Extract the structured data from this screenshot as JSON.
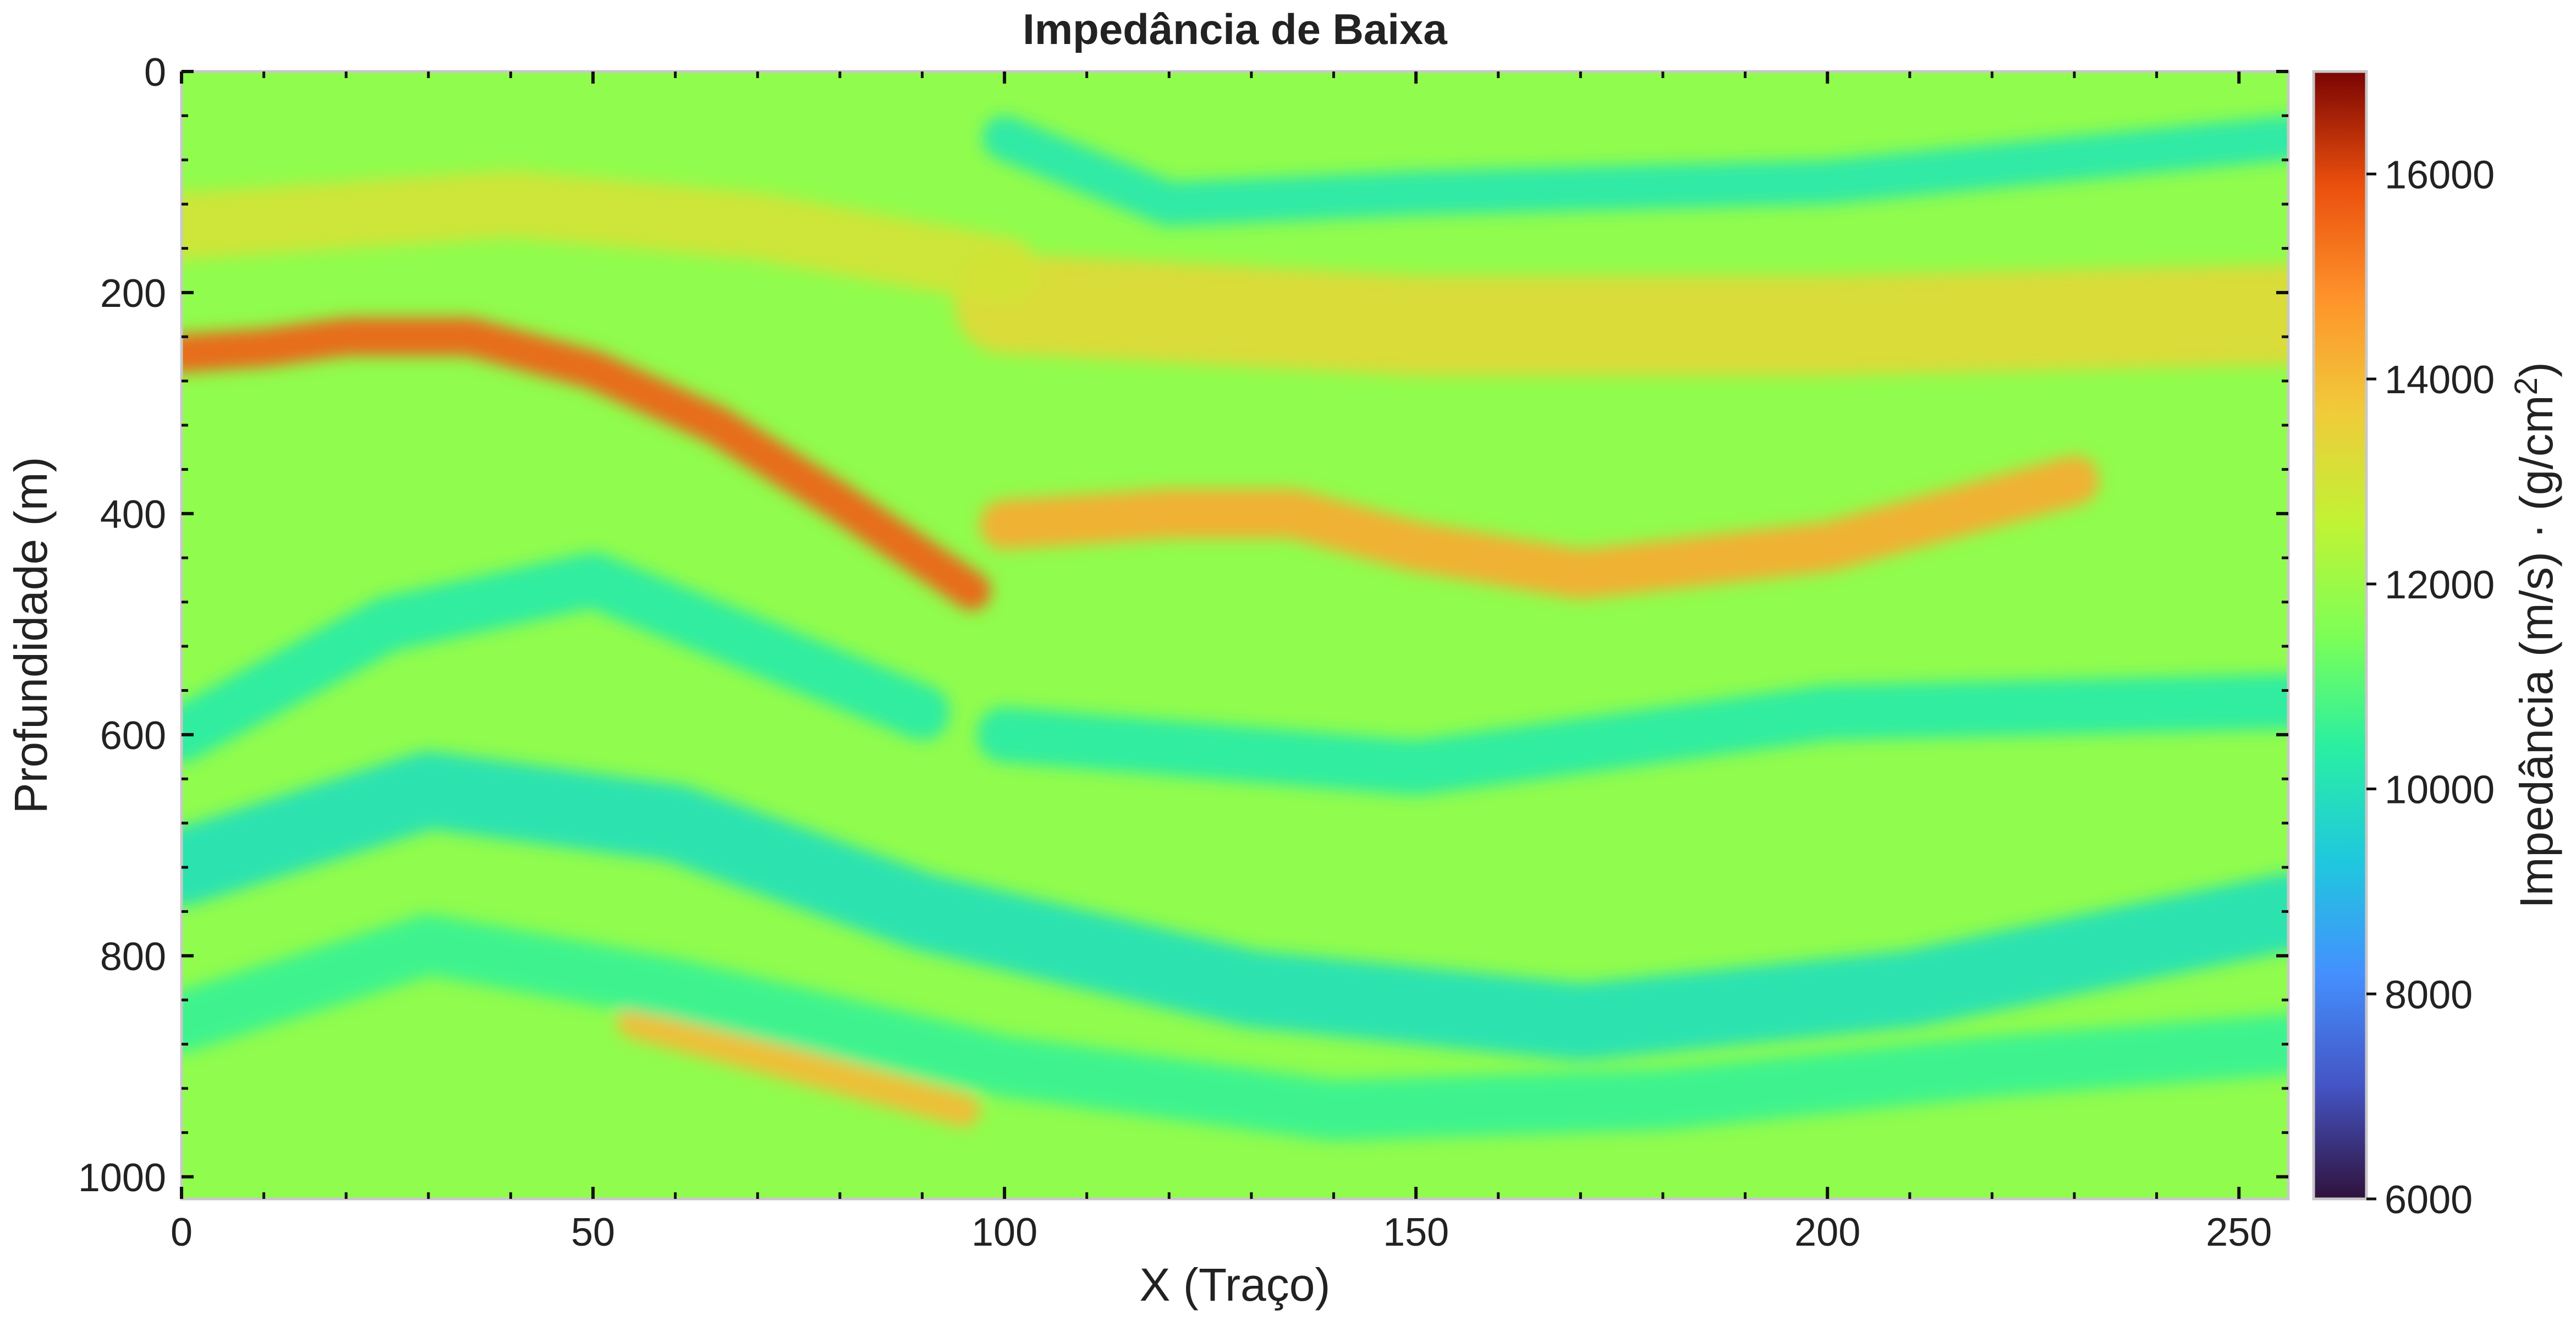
{
  "chart_data": {
    "type": "heatmap",
    "title": "Impedância de Baixa",
    "xlabel": "X (Traço)",
    "ylabel": "Profundidade (m)",
    "xlim": [
      0,
      256
    ],
    "ylim": [
      1020,
      0
    ],
    "x_ticks": [
      0,
      50,
      100,
      150,
      200,
      250
    ],
    "y_ticks": [
      0,
      200,
      400,
      600,
      800,
      1000
    ],
    "colormap": "turbo",
    "colorbar": {
      "label": "Impedância (m/s) · (g/cm²)",
      "range": [
        6000,
        17000
      ],
      "ticks": [
        6000,
        8000,
        10000,
        12000,
        14000,
        16000
      ]
    },
    "background_value": 11800,
    "features": [
      {
        "kind": "horizon",
        "points": [
          [
            0,
            255
          ],
          [
            10,
            250
          ],
          [
            20,
            240
          ],
          [
            35,
            240
          ],
          [
            50,
            270
          ],
          [
            65,
            320
          ],
          [
            80,
            390
          ],
          [
            96,
            470
          ]
        ],
        "value": 15600,
        "thickness_m": 35
      },
      {
        "kind": "horizon",
        "points": [
          [
            100,
            410
          ],
          [
            120,
            400
          ],
          [
            135,
            400
          ],
          [
            150,
            430
          ],
          [
            170,
            455
          ],
          [
            200,
            430
          ],
          [
            230,
            370
          ]
        ],
        "value": 14300,
        "thickness_m": 45
      },
      {
        "kind": "horizon",
        "points": [
          [
            100,
            210
          ],
          [
            150,
            230
          ],
          [
            200,
            230
          ],
          [
            256,
            220
          ]
        ],
        "value": 13300,
        "thickness_m": 90
      },
      {
        "kind": "horizon",
        "points": [
          [
            0,
            140
          ],
          [
            40,
            120
          ],
          [
            70,
            140
          ],
          [
            100,
            180
          ]
        ],
        "value": 13000,
        "thickness_m": 60
      },
      {
        "kind": "horizon",
        "points": [
          [
            55,
            860
          ],
          [
            75,
            900
          ],
          [
            95,
            940
          ]
        ],
        "value": 14000,
        "thickness_m": 30
      },
      {
        "kind": "horizon",
        "points": [
          [
            100,
            60
          ],
          [
            120,
            120
          ],
          [
            150,
            110
          ],
          [
            200,
            100
          ],
          [
            256,
            60
          ]
        ],
        "value": 10200,
        "thickness_m": 40
      },
      {
        "kind": "horizon",
        "points": [
          [
            0,
            600
          ],
          [
            25,
            500
          ],
          [
            50,
            460
          ],
          [
            70,
            520
          ],
          [
            90,
            580
          ]
        ],
        "value": 10300,
        "thickness_m": 50
      },
      {
        "kind": "horizon",
        "points": [
          [
            0,
            720
          ],
          [
            30,
            650
          ],
          [
            60,
            680
          ],
          [
            90,
            760
          ],
          [
            130,
            830
          ],
          [
            170,
            860
          ],
          [
            210,
            830
          ],
          [
            256,
            760
          ]
        ],
        "value": 10000,
        "thickness_m": 70
      },
      {
        "kind": "horizon",
        "points": [
          [
            100,
            600
          ],
          [
            150,
            630
          ],
          [
            200,
            580
          ],
          [
            256,
            570
          ]
        ],
        "value": 10300,
        "thickness_m": 50
      },
      {
        "kind": "horizon",
        "points": [
          [
            0,
            860
          ],
          [
            30,
            790
          ],
          [
            60,
            830
          ],
          [
            100,
            900
          ],
          [
            140,
            940
          ],
          [
            180,
            930
          ],
          [
            220,
            900
          ],
          [
            256,
            880
          ]
        ],
        "value": 10600,
        "thickness_m": 55
      }
    ]
  }
}
